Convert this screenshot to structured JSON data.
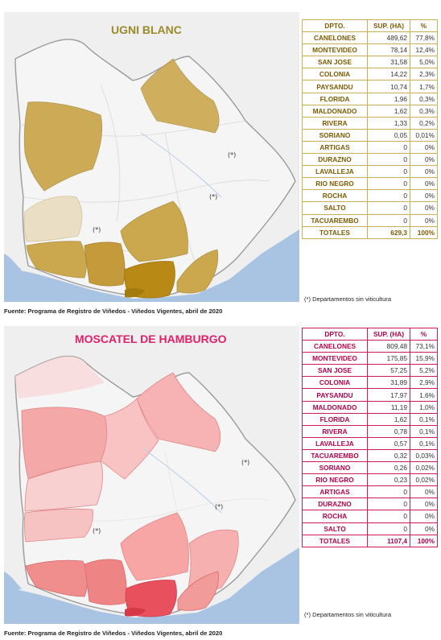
{
  "ugni": {
    "title": "UGNI BLANC",
    "color": "#cba84e",
    "markers": [
      "(*)",
      "(*)",
      "(*)"
    ],
    "headers": [
      "DPTO.",
      "SUP. (HA)",
      "%"
    ],
    "rows": [
      {
        "name": "CANELONES",
        "ha": "489,62",
        "pct": "77,8%"
      },
      {
        "name": "MONTEVIDEO",
        "ha": "78,14",
        "pct": "12,4%"
      },
      {
        "name": "SAN JOSE",
        "ha": "31,58",
        "pct": "5,0%"
      },
      {
        "name": "COLONIA",
        "ha": "14,22",
        "pct": "2,3%"
      },
      {
        "name": "PAYSANDU",
        "ha": "10,74",
        "pct": "1,7%"
      },
      {
        "name": "FLORIDA",
        "ha": "1,96",
        "pct": "0,3%"
      },
      {
        "name": "MALDONADO",
        "ha": "1,62",
        "pct": "0,3%"
      },
      {
        "name": "RIVERA",
        "ha": "1,33",
        "pct": "0,2%"
      },
      {
        "name": "SORIANO",
        "ha": "0,05",
        "pct": "0,01%"
      },
      {
        "name": "ARTIGAS",
        "ha": "0",
        "pct": "0%"
      },
      {
        "name": "DURAZNO",
        "ha": "0",
        "pct": "0%"
      },
      {
        "name": "LAVALLEJA",
        "ha": "0",
        "pct": "0%"
      },
      {
        "name": "RIO NEGRO",
        "ha": "0",
        "pct": "0%"
      },
      {
        "name": "ROCHA",
        "ha": "0",
        "pct": "0%"
      },
      {
        "name": "SALTO",
        "ha": "0",
        "pct": "0%"
      },
      {
        "name": "TACUAREMBO",
        "ha": "0",
        "pct": "0%"
      }
    ],
    "total": {
      "name": "TOTALES",
      "ha": "629,3",
      "pct": "100%"
    },
    "note": "(*) Departamentos sin viticultura",
    "source": "Fuente: Programa de Registro de Viñedos - Viñedos Vigentes, abril de 2020"
  },
  "moscatel": {
    "title": "MOSCATEL DE HAMBURGO",
    "color": "#e85866",
    "markers": [
      "(*)",
      "(*)",
      "(*)"
    ],
    "headers": [
      "DPTO.",
      "SUP. (HA)",
      "%"
    ],
    "rows": [
      {
        "name": "CANELONES",
        "ha": "809,48",
        "pct": "73,1%"
      },
      {
        "name": "MONTEVIDEO",
        "ha": "175,85",
        "pct": "15,9%"
      },
      {
        "name": "SAN JOSE",
        "ha": "57,25",
        "pct": "5,2%"
      },
      {
        "name": "COLONIA",
        "ha": "31,89",
        "pct": "2,9%"
      },
      {
        "name": "PAYSANDU",
        "ha": "17,97",
        "pct": "1,6%"
      },
      {
        "name": "MALDONADO",
        "ha": "11,19",
        "pct": "1,0%"
      },
      {
        "name": "FLORIDA",
        "ha": "1,62",
        "pct": "0,1%"
      },
      {
        "name": "RIVERA",
        "ha": "0,78",
        "pct": "0,1%"
      },
      {
        "name": "LAVALLEJA",
        "ha": "0,57",
        "pct": "0,1%"
      },
      {
        "name": "TACUAREMBO",
        "ha": "0,32",
        "pct": "0,03%"
      },
      {
        "name": "SORIANO",
        "ha": "0,26",
        "pct": "0,02%"
      },
      {
        "name": "RIO NEGRO",
        "ha": "0,23",
        "pct": "0,02%"
      },
      {
        "name": "ARTIGAS",
        "ha": "0",
        "pct": "0%"
      },
      {
        "name": "DURAZNO",
        "ha": "0",
        "pct": "0%"
      },
      {
        "name": "ROCHA",
        "ha": "0",
        "pct": "0%"
      },
      {
        "name": "SALTO",
        "ha": "0",
        "pct": "0%"
      }
    ],
    "total": {
      "name": "TOTALES",
      "ha": "1107,4",
      "pct": "100%"
    },
    "note": "(*) Departamentos sin viticultura",
    "source": "Fuente: Programa de Registro de Viñedos - Viñedos Vigentes, abril de 2020"
  }
}
